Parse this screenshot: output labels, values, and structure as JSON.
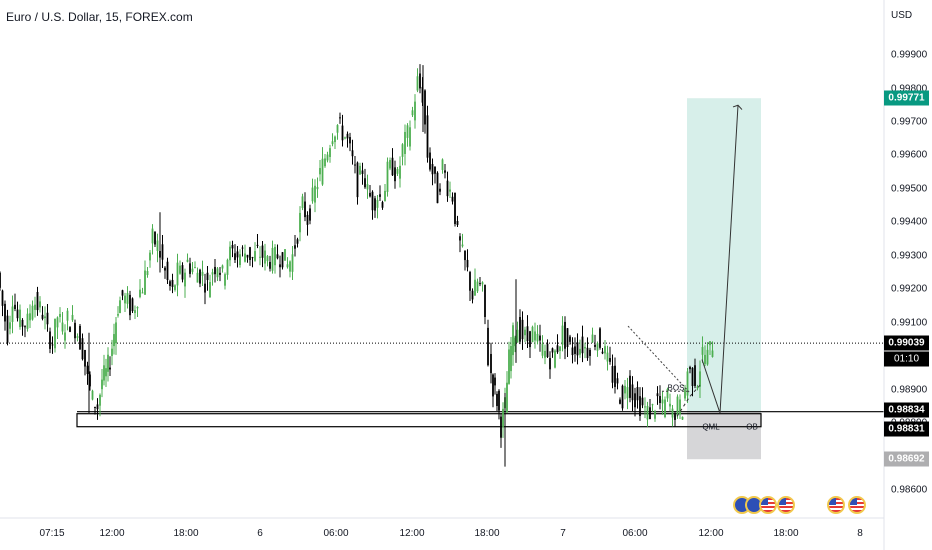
{
  "title": "Euro / U.S. Dollar, 15, FOREX.com",
  "currency": "USD",
  "colors": {
    "up": "#4caf50",
    "down": "#000000",
    "tp_zone": "#d7efea",
    "sl_zone": "#d6d6d8",
    "tp_tag": "#089981",
    "sl_tag": "#aeaeb0"
  },
  "chart_data": {
    "type": "candlestick",
    "ylim": [
      0.986,
      0.99945
    ],
    "y_ticks": [
      "0.98600",
      "0.98700",
      "0.98800",
      "0.98900",
      "0.99000",
      "0.99100",
      "0.99200",
      "0.99300",
      "0.99400",
      "0.99500",
      "0.99600",
      "0.99700",
      "0.99800",
      "0.99900"
    ],
    "x_ticks": [
      "07:15",
      "12:00",
      "18:00",
      "6",
      "06:00",
      "12:00",
      "18:00",
      "7",
      "06:00",
      "12:00",
      "18:00",
      "8"
    ],
    "close_path": [
      [
        0,
        0.9925
      ],
      [
        5,
        0.9915
      ],
      [
        10,
        0.9907
      ],
      [
        15,
        0.9918
      ],
      [
        20,
        0.9911
      ],
      [
        25,
        0.991
      ],
      [
        30,
        0.991
      ],
      [
        35,
        0.9917
      ],
      [
        40,
        0.9915
      ],
      [
        45,
        0.9913
      ],
      [
        50,
        0.9907
      ],
      [
        55,
        0.9904
      ],
      [
        60,
        0.9912
      ],
      [
        65,
        0.9908
      ],
      [
        70,
        0.9911
      ],
      [
        75,
        0.991
      ],
      [
        80,
        0.9907
      ],
      [
        85,
        0.9902
      ],
      [
        90,
        0.9893
      ],
      [
        95,
        0.9887
      ],
      [
        100,
        0.9885
      ],
      [
        104,
        0.9893
      ],
      [
        108,
        0.9895
      ],
      [
        112,
        0.9899
      ],
      [
        116,
        0.9907
      ],
      [
        120,
        0.9915
      ],
      [
        125,
        0.9918
      ],
      [
        130,
        0.9916
      ],
      [
        135,
        0.9913
      ],
      [
        140,
        0.9918
      ],
      [
        145,
        0.9921
      ],
      [
        150,
        0.9927
      ],
      [
        155,
        0.9935
      ],
      [
        160,
        0.9933
      ],
      [
        165,
        0.9928
      ],
      [
        170,
        0.9922
      ],
      [
        175,
        0.9919
      ],
      [
        180,
        0.9925
      ],
      [
        185,
        0.9924
      ],
      [
        190,
        0.9928
      ],
      [
        195,
        0.9926
      ],
      [
        200,
        0.9925
      ],
      [
        205,
        0.9924
      ],
      [
        210,
        0.9921
      ],
      [
        215,
        0.9926
      ],
      [
        220,
        0.9928
      ],
      [
        225,
        0.9924
      ],
      [
        230,
        0.993
      ],
      [
        235,
        0.9931
      ],
      [
        240,
        0.993
      ],
      [
        245,
        0.9931
      ],
      [
        250,
        0.9931
      ],
      [
        255,
        0.9929
      ],
      [
        260,
        0.9931
      ],
      [
        265,
        0.993
      ],
      [
        270,
        0.9929
      ],
      [
        275,
        0.9929
      ],
      [
        280,
        0.993
      ],
      [
        285,
        0.993
      ],
      [
        290,
        0.9927
      ],
      [
        295,
        0.993
      ],
      [
        300,
        0.9937
      ],
      [
        305,
        0.9945
      ],
      [
        310,
        0.9941
      ],
      [
        315,
        0.9947
      ],
      [
        320,
        0.9952
      ],
      [
        325,
        0.9957
      ],
      [
        330,
        0.9962
      ],
      [
        335,
        0.9967
      ],
      [
        340,
        0.9969
      ],
      [
        345,
        0.9967
      ],
      [
        350,
        0.9964
      ],
      [
        355,
        0.9958
      ],
      [
        360,
        0.9951
      ],
      [
        365,
        0.9956
      ],
      [
        370,
        0.9949
      ],
      [
        375,
        0.9946
      ],
      [
        380,
        0.9948
      ],
      [
        385,
        0.9947
      ],
      [
        390,
        0.9955
      ],
      [
        395,
        0.9957
      ],
      [
        400,
        0.9953
      ],
      [
        405,
        0.9962
      ],
      [
        410,
        0.9966
      ],
      [
        415,
        0.9973
      ],
      [
        420,
        0.9982
      ],
      [
        425,
        0.9978
      ],
      [
        430,
        0.996
      ],
      [
        435,
        0.9955
      ],
      [
        440,
        0.9948
      ],
      [
        445,
        0.9957
      ],
      [
        450,
        0.9951
      ],
      [
        455,
        0.9948
      ],
      [
        460,
        0.9936
      ],
      [
        465,
        0.993
      ],
      [
        470,
        0.9925
      ],
      [
        475,
        0.9918
      ],
      [
        480,
        0.9922
      ],
      [
        485,
        0.9919
      ],
      [
        488,
        0.9911
      ],
      [
        491,
        0.9899
      ],
      [
        495,
        0.9891
      ],
      [
        499,
        0.9887
      ],
      [
        503,
        0.9879
      ],
      [
        507,
        0.9885
      ],
      [
        511,
        0.9899
      ],
      [
        515,
        0.9906
      ],
      [
        520,
        0.9909
      ],
      [
        525,
        0.9906
      ],
      [
        530,
        0.9905
      ],
      [
        535,
        0.9907
      ],
      [
        540,
        0.9904
      ],
      [
        545,
        0.9902
      ],
      [
        550,
        0.99
      ],
      [
        555,
        0.9899
      ],
      [
        560,
        0.9903
      ],
      [
        565,
        0.9907
      ],
      [
        570,
        0.9903
      ],
      [
        575,
        0.9902
      ],
      [
        580,
        0.9903
      ],
      [
        585,
        0.9903
      ],
      [
        590,
        0.9902
      ],
      [
        595,
        0.9905
      ],
      [
        600,
        0.9905
      ],
      [
        605,
        0.9903
      ],
      [
        610,
        0.9898
      ],
      [
        615,
        0.9894
      ],
      [
        620,
        0.989
      ],
      [
        625,
        0.9887
      ],
      [
        630,
        0.9893
      ],
      [
        635,
        0.9889
      ],
      [
        640,
        0.9886
      ],
      [
        645,
        0.9885
      ],
      [
        650,
        0.9883
      ],
      [
        655,
        0.9884
      ],
      [
        660,
        0.9887
      ],
      [
        665,
        0.9884
      ],
      [
        670,
        0.9888
      ],
      [
        675,
        0.9882
      ],
      [
        680,
        0.9885
      ],
      [
        685,
        0.9884
      ],
      [
        690,
        0.9896
      ],
      [
        695,
        0.9894
      ],
      [
        700,
        0.9893
      ],
      [
        705,
        0.9901
      ],
      [
        710,
        0.99
      ],
      [
        715,
        0.9904
      ]
    ],
    "spikes": [
      {
        "x": 89,
        "low": 0.9883,
        "high": 0.9907
      },
      {
        "x": 160,
        "low": 0.9925,
        "high": 0.9943
      },
      {
        "x": 423,
        "low": 0.9967,
        "high": 0.9987
      },
      {
        "x": 505,
        "low": 0.9867,
        "high": 0.9889
      },
      {
        "x": 516,
        "low": 0.9898,
        "high": 0.9923
      }
    ],
    "levels": {
      "current_price": 0.99039,
      "take_profit": 0.99771,
      "entry": 0.98834,
      "stop_loss": 0.98692,
      "ob_upper": 0.98834,
      "ob_lower": 0.98831
    },
    "zone_x_range": [
      687,
      761
    ],
    "ob_box_x_range": [
      77,
      761
    ],
    "price_tags": [
      "0.99771",
      "0.99039",
      "0.98834",
      "0.98831",
      "0.98692"
    ],
    "countdown": "01:10",
    "annotations": [
      "BOS",
      "QML",
      "OB"
    ]
  },
  "events": [
    {
      "x": 742,
      "flag": "eu"
    },
    {
      "x": 754,
      "flag": "eu"
    },
    {
      "x": 768,
      "flag": "us"
    },
    {
      "x": 786,
      "flag": "us"
    },
    {
      "x": 836,
      "flag": "us"
    },
    {
      "x": 857,
      "flag": "us"
    }
  ]
}
